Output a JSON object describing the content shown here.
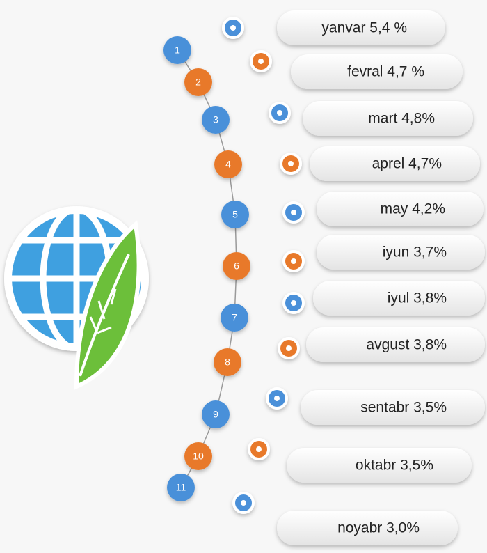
{
  "items": [
    {
      "number": 1,
      "label": "yanvar 5,4 %"
    },
    {
      "number": 2,
      "label": "fevral 4,7 %"
    },
    {
      "number": 3,
      "label": "mart 4,8%"
    },
    {
      "number": 4,
      "label": "aprel 4,7%"
    },
    {
      "number": 5,
      "label": "may 4,2%"
    },
    {
      "number": 6,
      "label": "iyun 3,7%"
    },
    {
      "number": 7,
      "label": "iyul 3,8%"
    },
    {
      "number": 8,
      "label": "avgust 3,8%"
    },
    {
      "number": 9,
      "label": "sentabr 3,5%"
    },
    {
      "number": 10,
      "label": "oktabr 3,5%"
    },
    {
      "number": 11,
      "label": "noyabr 3,0%"
    }
  ]
}
